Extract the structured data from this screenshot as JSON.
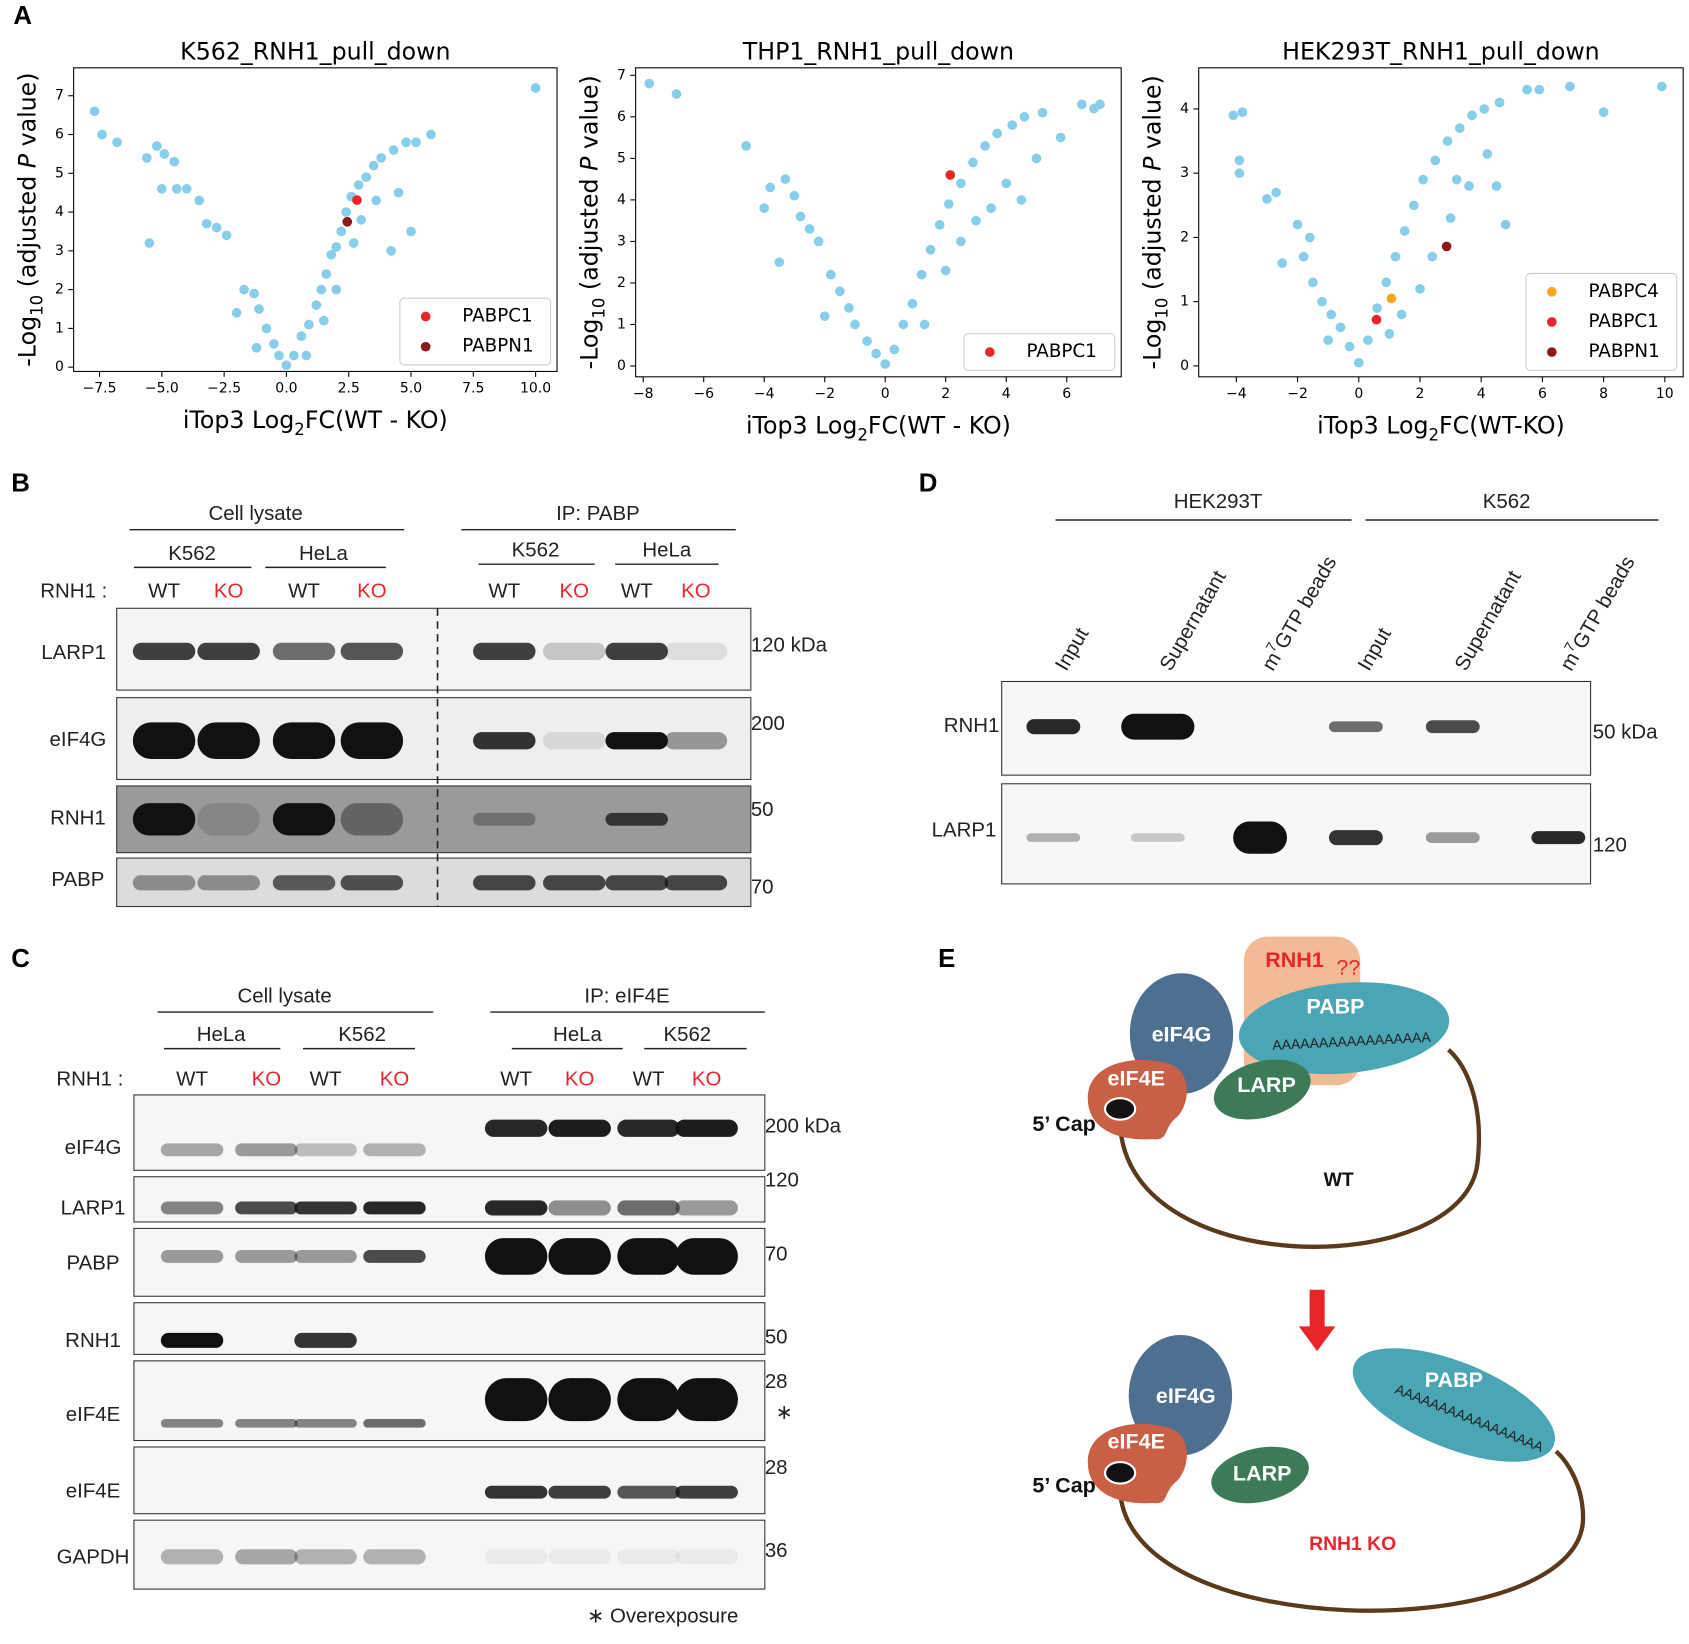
{
  "chart_data": [
    {
      "type": "scatter",
      "title": "K562_RNH1_pull_down",
      "xlabel": [
        "iTop3 Log",
        "2",
        "FC(WT - KO)"
      ],
      "ylabel": [
        "-Log",
        "10",
        " (adjusted ",
        "P",
        " value)"
      ],
      "xlim": [
        -8.54,
        10.86
      ],
      "ylim": [
        -0.11,
        7.72
      ],
      "xticks": [
        {
          "value": -7.5,
          "label": "−7.5"
        },
        {
          "value": -5,
          "label": "−5.0"
        },
        {
          "value": -2.5,
          "label": "−2.5"
        },
        {
          "value": 0,
          "label": "0.0"
        },
        {
          "value": 2.5,
          "label": "2.5"
        },
        {
          "value": 5,
          "label": "5.0"
        },
        {
          "value": 7.5,
          "label": "7.5"
        },
        {
          "value": 10,
          "label": "10.0"
        }
      ],
      "yticks": [
        0,
        1,
        2,
        3,
        4,
        5,
        6,
        7
      ],
      "color": "#87ceeb",
      "legend": "lower right",
      "x": [
        -7.7,
        -7.4,
        -6.8,
        -5.6,
        -5.2,
        -4.9,
        -4.5,
        -5.0,
        -4.4,
        -4.0,
        -3.5,
        -3.2,
        -2.8,
        -2.4,
        -1.7,
        -1.3,
        -1.1,
        -0.8,
        -0.5,
        -0.3,
        0,
        0.3,
        0.6,
        0.9,
        1.2,
        1.4,
        1.6,
        1.8,
        2.0,
        2.2,
        2.4,
        2.6,
        2.9,
        3.2,
        3.5,
        3.8,
        4.3,
        4.8,
        5.2,
        5.8,
        3.0,
        2.7,
        3.6,
        4.5,
        5.0,
        4.2,
        1.5,
        -2.0,
        10.0,
        -5.5,
        -1.2,
        0.8,
        2.0
      ],
      "values": [
        6.6,
        6.0,
        5.8,
        5.4,
        5.7,
        5.5,
        5.3,
        4.6,
        4.6,
        4.6,
        4.3,
        3.7,
        3.6,
        3.4,
        2.0,
        1.9,
        1.5,
        1.0,
        0.6,
        0.3,
        0.05,
        0.3,
        0.8,
        1.1,
        1.6,
        2.0,
        2.4,
        2.9,
        3.1,
        3.5,
        4.0,
        4.4,
        4.7,
        4.9,
        5.2,
        5.4,
        5.6,
        5.8,
        5.8,
        6.0,
        3.8,
        3.2,
        4.3,
        4.5,
        3.5,
        3.0,
        1.2,
        1.4,
        7.2,
        3.2,
        0.5,
        0.3,
        2.0
      ],
      "series": [
        {
          "name": "PABPC1",
          "color": "#e8262a",
          "x": [
            2.83
          ],
          "values": [
            4.31
          ]
        },
        {
          "name": "PABPN1",
          "color": "#8b1a1a",
          "x": [
            2.44
          ],
          "values": [
            3.75
          ]
        }
      ]
    },
    {
      "type": "scatter",
      "title": "THP1_RNH1_pull_down",
      "xlabel": [
        "iTop3 Log",
        "2",
        "FC(WT - KO)"
      ],
      "ylabel": [
        "-Log",
        "10",
        " (adjusted ",
        "P",
        " value)"
      ],
      "xlim": [
        -8.25,
        7.8
      ],
      "ylim": [
        -0.26,
        7.18
      ],
      "xticks": [
        {
          "value": -8,
          "label": "−8"
        },
        {
          "value": -6,
          "label": "−6"
        },
        {
          "value": -4,
          "label": "−4"
        },
        {
          "value": -2,
          "label": "−2"
        },
        0,
        2,
        4,
        6
      ],
      "yticks": [
        0,
        1,
        2,
        3,
        4,
        5,
        6,
        7
      ],
      "color": "#87ceeb",
      "legend": "lower right",
      "x": [
        -7.8,
        -6.9,
        -4.6,
        -3.8,
        -3.3,
        -3.0,
        -2.8,
        -4.0,
        -2.5,
        -2.2,
        -1.8,
        -1.5,
        -1.2,
        -1.0,
        -0.6,
        -0.3,
        0,
        0.3,
        0.6,
        0.9,
        1.2,
        1.5,
        1.8,
        2.1,
        2.5,
        2.9,
        3.3,
        3.7,
        4.2,
        4.6,
        5.2,
        6.5,
        7.1,
        6.9,
        3.0,
        2.5,
        4.0,
        5.0,
        4.5,
        3.5,
        2.0,
        1.3,
        -3.5,
        -2.0,
        5.8
      ],
      "values": [
        6.8,
        6.55,
        5.3,
        4.3,
        4.5,
        4.1,
        3.6,
        3.8,
        3.3,
        3.0,
        2.2,
        1.8,
        1.4,
        1.0,
        0.6,
        0.3,
        0.05,
        0.4,
        1.0,
        1.5,
        2.2,
        2.8,
        3.4,
        3.9,
        4.4,
        4.9,
        5.3,
        5.6,
        5.8,
        6.0,
        6.1,
        6.3,
        6.3,
        6.2,
        3.5,
        3.0,
        4.4,
        5.0,
        4.0,
        3.8,
        2.3,
        1.0,
        2.5,
        1.2,
        5.5
      ],
      "series": [
        {
          "name": "PABPC1",
          "color": "#e8262a",
          "x": [
            2.15
          ],
          "values": [
            4.6
          ]
        }
      ]
    },
    {
      "type": "scatter",
      "title": "HEK293T_RNH1_pull_down",
      "xlabel": [
        "iTop3 Log",
        "2",
        "FC(WT-KO)"
      ],
      "ylabel": [
        "-Log",
        "10",
        " (adjusted ",
        "P",
        " value)"
      ],
      "xlim": [
        -5.23,
        10.6
      ],
      "ylim": [
        -0.17,
        4.64
      ],
      "xticks": [
        {
          "value": -4,
          "label": "−4"
        },
        {
          "value": -2,
          "label": "−2"
        },
        0,
        2,
        4,
        6,
        8,
        10
      ],
      "yticks": [
        0,
        1,
        2,
        3,
        4
      ],
      "color": "#87ceeb",
      "legend": "lower right",
      "x": [
        -4.1,
        -3.8,
        -3.9,
        -3.9,
        -3.0,
        -2.7,
        -2.0,
        -1.6,
        -1.8,
        -1.5,
        -1.2,
        -0.9,
        -0.6,
        -0.3,
        0,
        0.3,
        0.6,
        0.9,
        1.2,
        1.5,
        1.8,
        2.1,
        2.5,
        2.9,
        3.3,
        3.7,
        4.1,
        4.6,
        5.5,
        6.9,
        5.9,
        8.0,
        9.9,
        3.0,
        2.4,
        3.6,
        4.5,
        4.8,
        2.0,
        1.4,
        -2.5,
        -1.0,
        3.2,
        4.2,
        1.0
      ],
      "values": [
        3.9,
        3.95,
        3.2,
        3.0,
        2.6,
        2.7,
        2.2,
        2.0,
        1.7,
        1.3,
        1.0,
        0.8,
        0.6,
        0.3,
        0.05,
        0.4,
        0.9,
        1.3,
        1.7,
        2.1,
        2.5,
        2.9,
        3.2,
        3.5,
        3.7,
        3.9,
        4.0,
        4.1,
        4.3,
        4.35,
        4.3,
        3.95,
        4.35,
        2.3,
        1.7,
        2.8,
        2.8,
        2.2,
        1.2,
        0.8,
        1.6,
        0.4,
        2.9,
        3.3,
        0.5
      ],
      "series": [
        {
          "name": "PABPC4",
          "color": "#f5a623",
          "x": [
            1.07
          ],
          "values": [
            1.05
          ]
        },
        {
          "name": "PABPC1",
          "color": "#e8262a",
          "x": [
            0.58
          ],
          "values": [
            0.72
          ]
        },
        {
          "name": "PABPN1",
          "color": "#8b1a1a",
          "x": [
            2.87
          ],
          "values": [
            1.86
          ]
        }
      ]
    }
  ],
  "panel_letters": [
    "A",
    "B",
    "C",
    "D",
    "E"
  ],
  "panel_b": {
    "groups": [
      "Cell lysate",
      "IP: PABP"
    ],
    "cell_lines": [
      "K562",
      "HeLa",
      "K562",
      "HeLa"
    ],
    "rnh1_label": "RNH1 :",
    "genotypes": [
      "WT",
      "KO",
      "WT",
      "KO",
      "WT",
      "KO",
      "WT",
      "KO"
    ],
    "rows": [
      "LARP1",
      "eIF4G",
      "RNH1",
      "PABP"
    ],
    "markers": [
      "120 kDa",
      "200",
      "50",
      "70"
    ]
  },
  "panel_c": {
    "groups": [
      "Cell lysate",
      "IP: eIF4E"
    ],
    "cell_lines": [
      "HeLa",
      "K562",
      "HeLa",
      "K562"
    ],
    "rnh1_label": "RNH1 :",
    "genotypes": [
      "WT",
      "KO",
      "WT",
      "KO",
      "WT",
      "KO",
      "WT",
      "KO"
    ],
    "rows": [
      "eIF4G",
      "LARP1",
      "PABP",
      "RNH1",
      "eIF4E",
      "eIF4E",
      "GAPDH"
    ],
    "markers": [
      "200 kDa",
      "120",
      "70",
      "50",
      "28",
      "∗",
      "28",
      "36"
    ],
    "note": "∗ Overexposure"
  },
  "panel_d": {
    "groups": [
      "HEK293T",
      "K562"
    ],
    "lanes": [
      [
        "Input"
      ],
      [
        "Supernatant"
      ],
      [
        "m",
        "7",
        "GTP beads"
      ],
      [
        "Input"
      ],
      [
        "Supernatant"
      ],
      [
        "m",
        "7",
        "GTP beads"
      ]
    ],
    "rows": [
      "RNH1",
      "LARP1"
    ],
    "markers": [
      "50 kDa",
      "120"
    ]
  },
  "panel_e": {
    "wt": {
      "rnh1": "RNH1",
      "question": "??",
      "pabp": "PABP",
      "polya": "AAAAAAAAAAAAAAAAA",
      "eif4g": "eIF4G",
      "eif4e": "eIF4E",
      "larp": "LARP",
      "cap": "5’ Cap",
      "state": "WT"
    },
    "ko": {
      "pabp": "PABP",
      "polya": "AAAAAAAAAAAAAAAAA",
      "eif4g": "eIF4G",
      "eif4e": "eIF4E",
      "larp": "LARP",
      "cap": "5’ Cap",
      "state": "RNH1 KO"
    }
  }
}
